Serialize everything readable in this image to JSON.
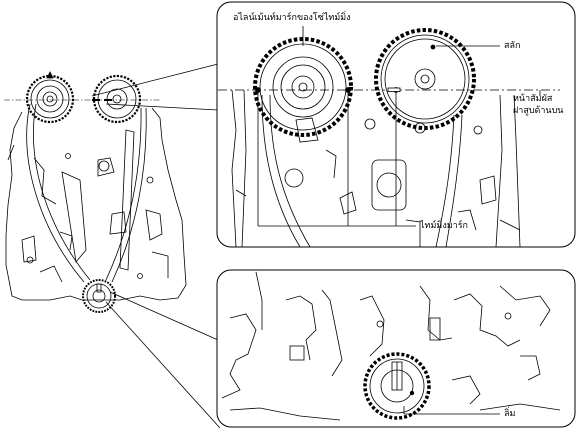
{
  "labels": {
    "alignment_mark": "อไลน์เม้นท์มาร์กของโซ่ไทม์มิ่ง",
    "pin": "สลัก",
    "head_surface_line1": "หน้าสัมผัส",
    "head_surface_line2": "ฝาสูบด้านบน",
    "timing_mark": "ไทม์มิ่งมาร์ก",
    "key": "ลิ่ม"
  }
}
